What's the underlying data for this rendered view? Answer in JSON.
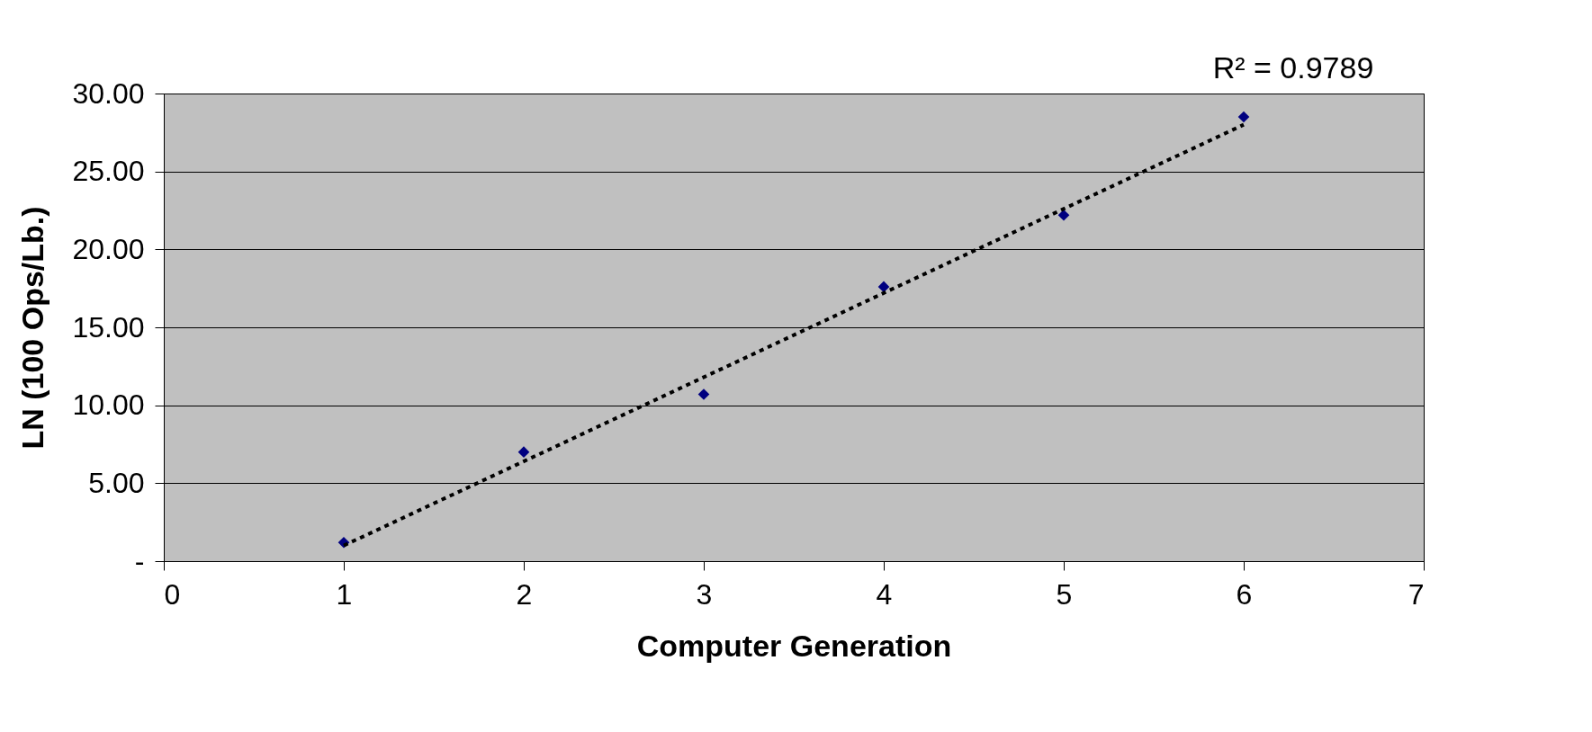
{
  "chart_data": {
    "type": "scatter",
    "xlabel": "Computer Generation",
    "ylabel": "LN (100 Ops/Lb.)",
    "annotations": [
      "R² = 0.9789"
    ],
    "series": [
      {
        "color": "#000080",
        "x": [
          1,
          2,
          3,
          4,
          5,
          6
        ],
        "values": [
          1.2,
          7.0,
          10.7,
          17.6,
          22.2,
          28.5
        ],
        "marker": "diamond"
      },
      {
        "type": "line",
        "color": "#000000",
        "x": [
          1,
          6
        ],
        "values": [
          1.0,
          28.0
        ],
        "line_style": "dotted",
        "marker": "none"
      }
    ],
    "xlim": [
      0,
      7
    ],
    "xticks": [
      0,
      1,
      2,
      3,
      4,
      5,
      6,
      7
    ],
    "ylim": [
      0,
      30
    ],
    "yticks": [
      {
        "value": 0,
        "label": "-"
      },
      {
        "value": 5,
        "label": "5.00"
      },
      {
        "value": 10,
        "label": "10.00"
      },
      {
        "value": 15,
        "label": "15.00"
      },
      {
        "value": 20,
        "label": "20.00"
      },
      {
        "value": 25,
        "label": "25.00"
      },
      {
        "value": 30,
        "label": "30.00"
      }
    ],
    "grid": "y",
    "legend": false
  }
}
